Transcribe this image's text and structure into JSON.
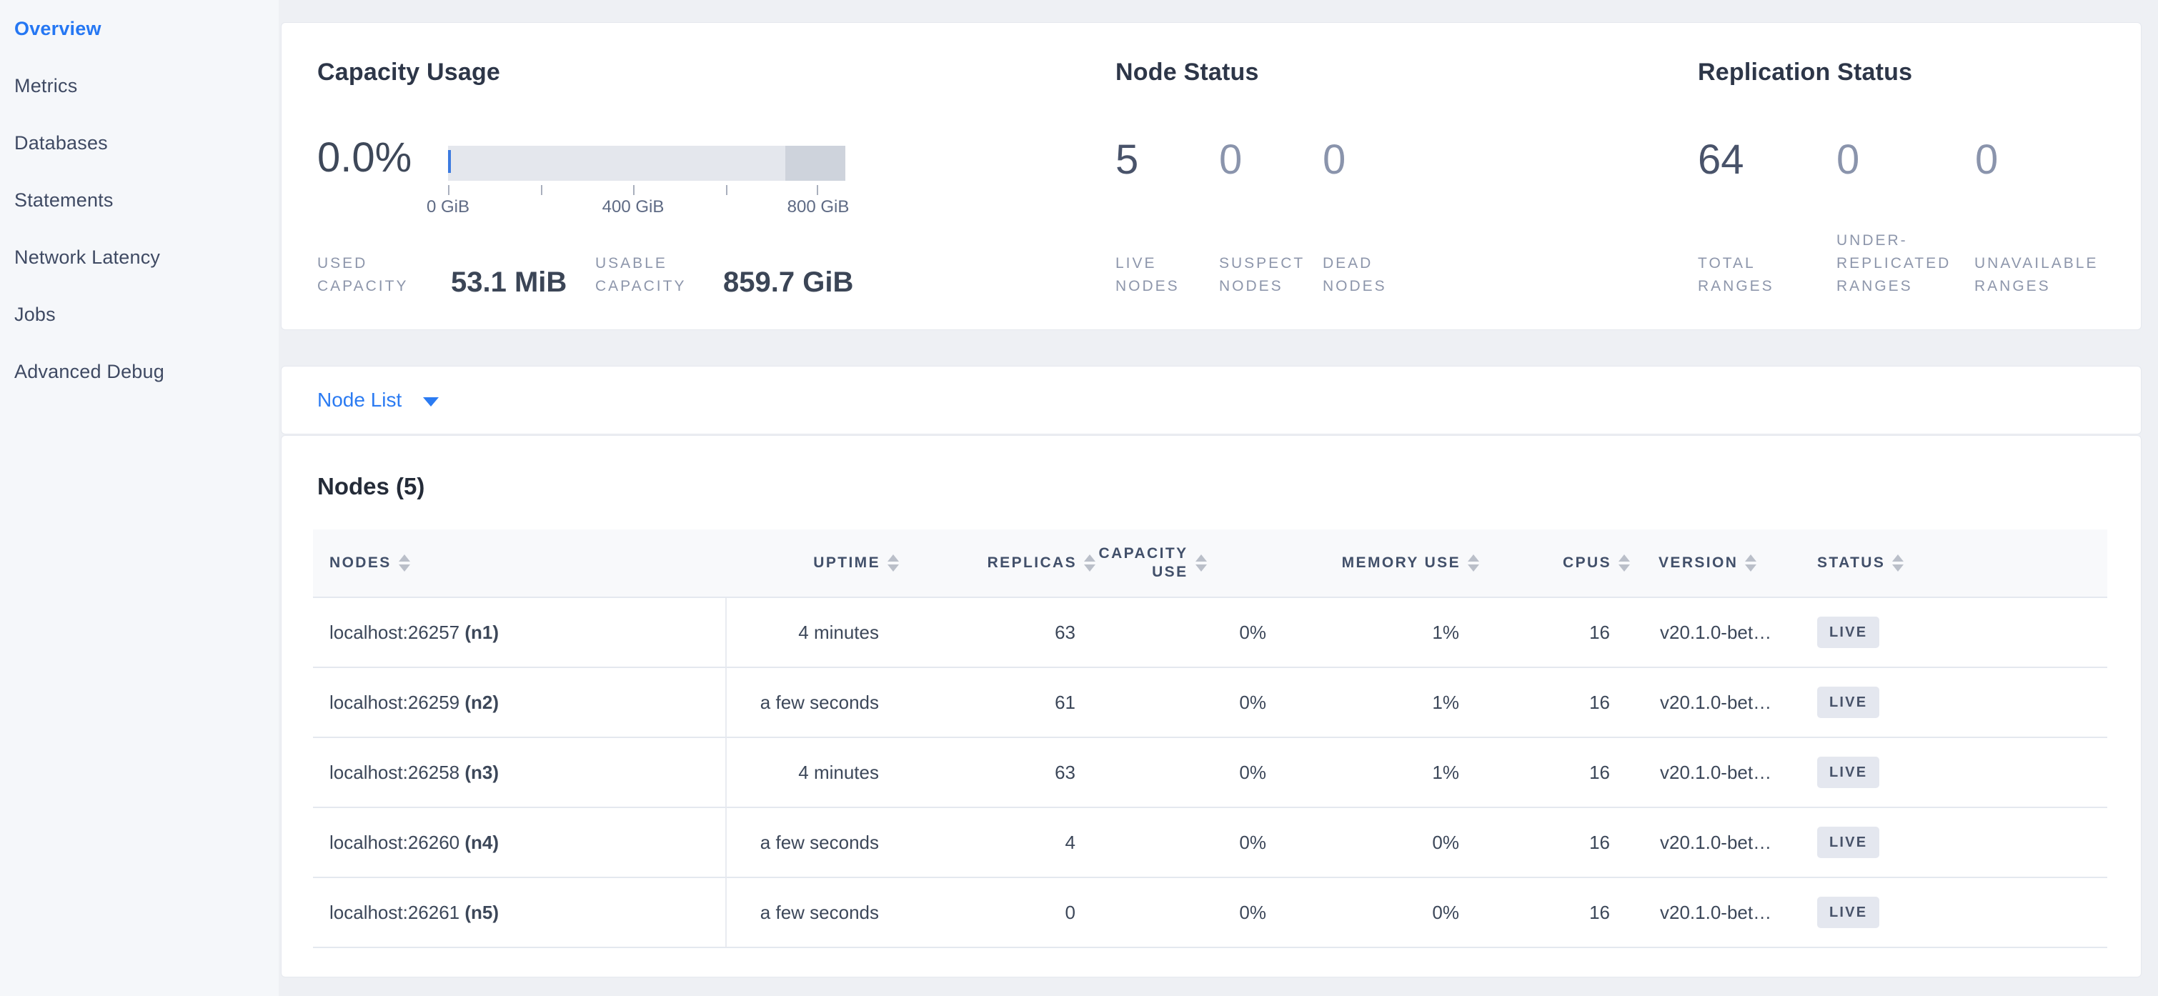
{
  "sidebar": {
    "items": [
      {
        "label": "Overview",
        "active": true
      },
      {
        "label": "Metrics",
        "active": false
      },
      {
        "label": "Databases",
        "active": false
      },
      {
        "label": "Statements",
        "active": false
      },
      {
        "label": "Network Latency",
        "active": false
      },
      {
        "label": "Jobs",
        "active": false
      },
      {
        "label": "Advanced Debug",
        "active": false
      }
    ]
  },
  "summary": {
    "capacity": {
      "title": "Capacity Usage",
      "percent": "0.0%",
      "axis_labels": [
        "0 GiB",
        "400 GiB",
        "800 GiB"
      ],
      "used_label": "USED CAPACITY",
      "used_value": "53.1 MiB",
      "usable_label": "USABLE CAPACITY",
      "usable_value": "859.7 GiB",
      "bar_light_color": "#e4e7ed",
      "bar_dark_color": "#ced3dc",
      "used_tick_color": "#3d7be0"
    },
    "node_status": {
      "title": "Node Status",
      "metrics": [
        {
          "value": "5",
          "label": "LIVE NODES",
          "strong": true
        },
        {
          "value": "0",
          "label": "SUSPECT NODES",
          "strong": false
        },
        {
          "value": "0",
          "label": "DEAD NODES",
          "strong": false
        }
      ]
    },
    "replication": {
      "title": "Replication Status",
      "metrics": [
        {
          "value": "64",
          "label": "TOTAL RANGES",
          "strong": true
        },
        {
          "value": "0",
          "label": "UNDER-REPLICATED RANGES",
          "strong": false
        },
        {
          "value": "0",
          "label": "UNAVAILABLE RANGES",
          "strong": false
        }
      ]
    }
  },
  "node_list": {
    "label": "Node List"
  },
  "nodes_table": {
    "heading": "Nodes (5)",
    "columns": [
      "NODES",
      "UPTIME",
      "REPLICAS",
      "CAPACITY USE",
      "MEMORY USE",
      "CPUS",
      "VERSION",
      "STATUS"
    ],
    "rows": [
      {
        "node": "localhost:26257",
        "id": "(n1)",
        "uptime": "4 minutes",
        "replicas": "63",
        "capacity": "0%",
        "memory": "1%",
        "cpus": "16",
        "version": "v20.1.0-bet…",
        "status": "LIVE"
      },
      {
        "node": "localhost:26259",
        "id": "(n2)",
        "uptime": "a few seconds",
        "replicas": "61",
        "capacity": "0%",
        "memory": "1%",
        "cpus": "16",
        "version": "v20.1.0-bet…",
        "status": "LIVE"
      },
      {
        "node": "localhost:26258",
        "id": "(n3)",
        "uptime": "4 minutes",
        "replicas": "63",
        "capacity": "0%",
        "memory": "1%",
        "cpus": "16",
        "version": "v20.1.0-bet…",
        "status": "LIVE"
      },
      {
        "node": "localhost:26260",
        "id": "(n4)",
        "uptime": "a few seconds",
        "replicas": "4",
        "capacity": "0%",
        "memory": "0%",
        "cpus": "16",
        "version": "v20.1.0-bet…",
        "status": "LIVE"
      },
      {
        "node": "localhost:26261",
        "id": "(n5)",
        "uptime": "a few seconds",
        "replicas": "0",
        "capacity": "0%",
        "memory": "0%",
        "cpus": "16",
        "version": "v20.1.0-bet…",
        "status": "LIVE"
      }
    ]
  },
  "colors": {
    "accent_blue": "#2577f3",
    "page_bg": "#eef0f4",
    "sidebar_bg": "#f5f7fa",
    "badge_bg": "#e4e7ef"
  }
}
